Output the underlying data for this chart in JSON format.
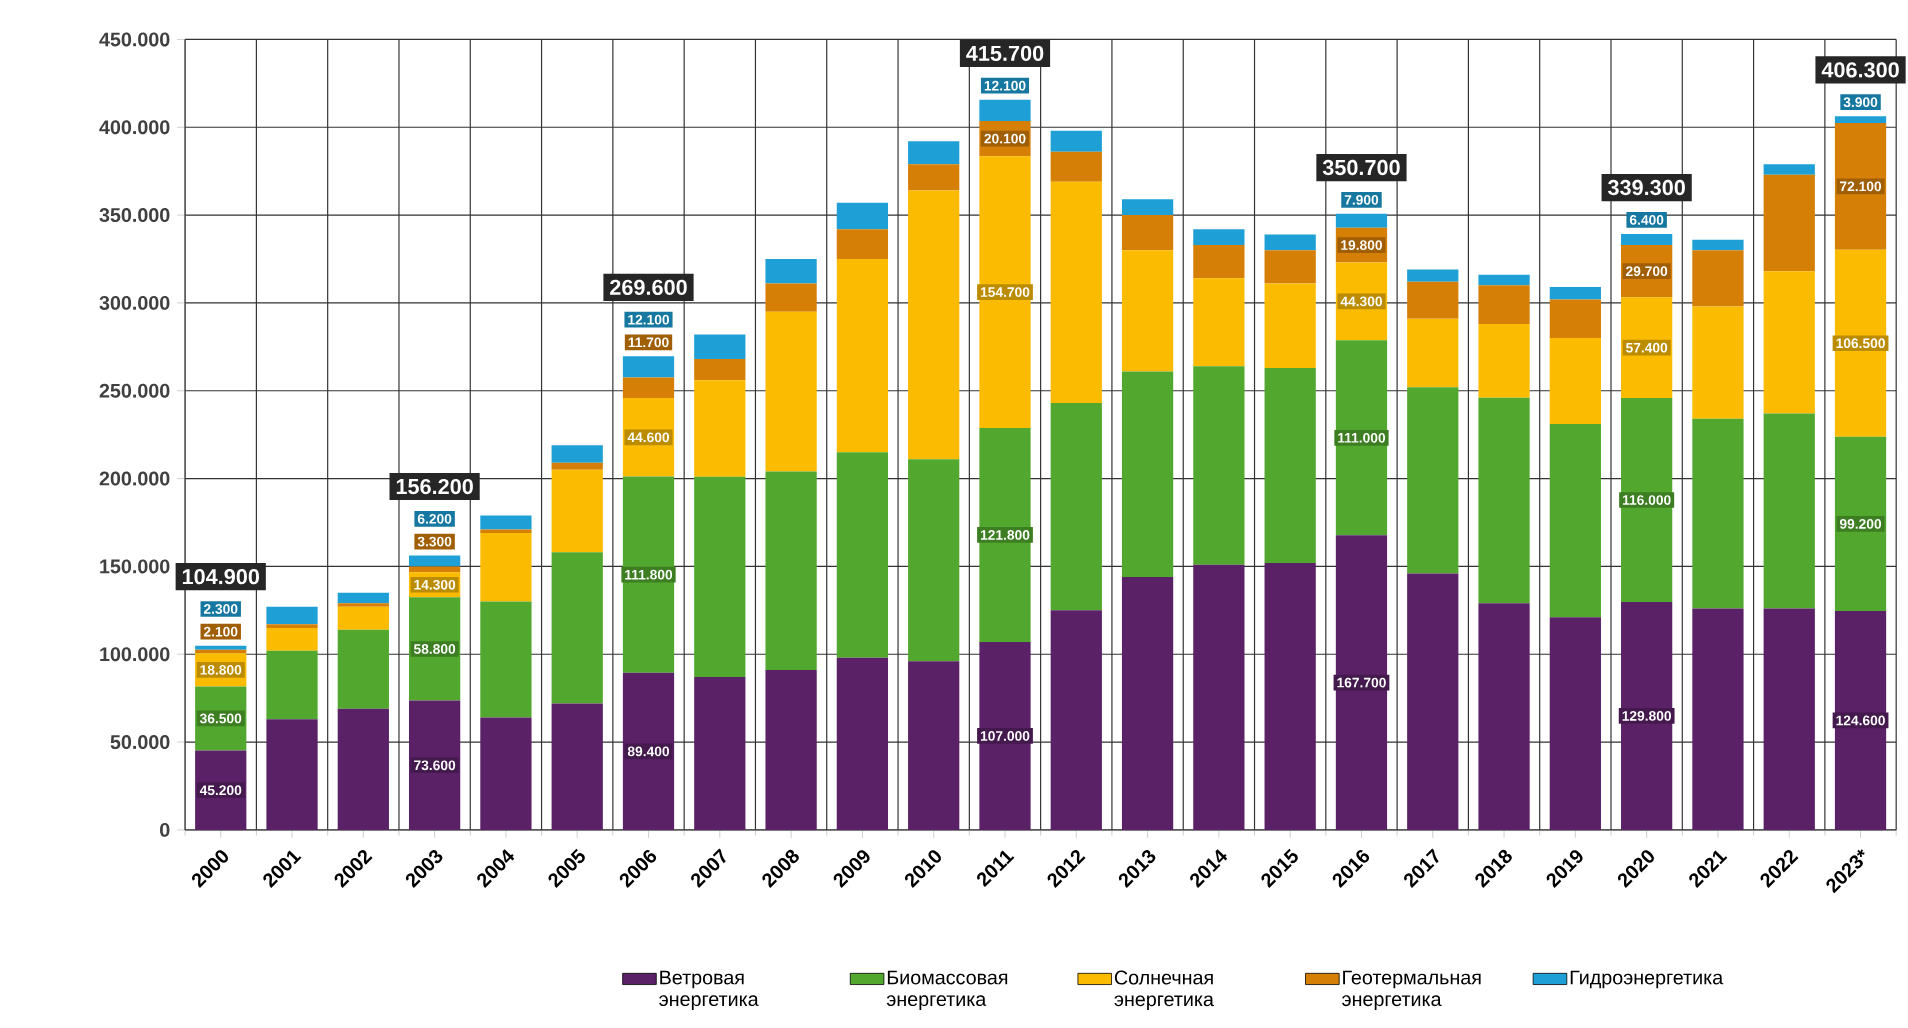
{
  "chart_data": {
    "type": "bar",
    "stacked": true,
    "grid": true,
    "legend": "bottom",
    "categories": [
      "2000",
      "2001",
      "2002",
      "2003",
      "2004",
      "2005",
      "2006",
      "2007",
      "2008",
      "2009",
      "2010",
      "2011",
      "2012",
      "2013",
      "2014",
      "2015",
      "2016",
      "2017",
      "2018",
      "2019",
      "2020",
      "2021",
      "2022",
      "2023*"
    ],
    "ylim": [
      0,
      450000
    ],
    "yticks": [
      0,
      {
        "value": 50000,
        "label": "50.000"
      },
      {
        "value": 100000,
        "label": "100.000"
      },
      {
        "value": 150000,
        "label": "150.000"
      },
      {
        "value": 200000,
        "label": "200.000"
      },
      {
        "value": 250000,
        "label": "250.000"
      },
      {
        "value": 300000,
        "label": "300.000"
      },
      {
        "value": 350000,
        "label": "350.000"
      },
      {
        "value": 400000,
        "label": "400.000"
      },
      {
        "value": 450000,
        "label": "450.000"
      }
    ],
    "series": [
      {
        "name": "Ветровая энергетика",
        "color": "#5b2167",
        "values": [
          45200,
          63000,
          69000,
          73600,
          64000,
          72000,
          89400,
          87000,
          91000,
          98000,
          96000,
          107000,
          125000,
          144000,
          151000,
          152000,
          167700,
          146000,
          129000,
          121000,
          129800,
          126000,
          126000,
          124600
        ],
        "value_labels": [
          "45.200",
          null,
          null,
          "73.600",
          null,
          null,
          "89.400",
          null,
          null,
          null,
          null,
          "107.000",
          null,
          null,
          null,
          null,
          "167.700",
          null,
          null,
          null,
          "129.800",
          null,
          null,
          "124.600"
        ]
      },
      {
        "name": "Биомассовая энергетика",
        "color": "#52a82e",
        "values": [
          36500,
          39000,
          45000,
          58800,
          66000,
          86000,
          111800,
          114000,
          113000,
          117000,
          115000,
          121800,
          118000,
          117000,
          113000,
          111000,
          111000,
          106000,
          117000,
          110000,
          116000,
          108000,
          111000,
          99200
        ],
        "value_labels": [
          "36.500",
          null,
          null,
          "58.800",
          null,
          null,
          "111.800",
          null,
          null,
          null,
          null,
          "121.800",
          null,
          null,
          null,
          null,
          "111.000",
          null,
          null,
          null,
          "116.000",
          null,
          null,
          "99.200"
        ]
      },
      {
        "name": "Солнечная энергетика",
        "color": "#fbbb00",
        "values": [
          18800,
          13000,
          13000,
          14300,
          39000,
          47000,
          44600,
          55000,
          91000,
          110000,
          153000,
          154700,
          126000,
          69000,
          50000,
          48000,
          44300,
          39000,
          42000,
          49000,
          57400,
          64000,
          81000,
          106500
        ],
        "value_labels": [
          "18.800",
          null,
          null,
          "14.300",
          null,
          null,
          "44.600",
          null,
          null,
          null,
          null,
          "154.700",
          null,
          null,
          null,
          null,
          "44.300",
          null,
          null,
          null,
          "57.400",
          null,
          null,
          "106.500"
        ]
      },
      {
        "name": "Геотермальная энергетика",
        "color": "#d57f06",
        "values": [
          2100,
          2000,
          2000,
          3300,
          2000,
          4000,
          11700,
          12000,
          16000,
          17000,
          15000,
          20100,
          17000,
          20000,
          19000,
          19000,
          19800,
          21000,
          22000,
          22000,
          29700,
          32000,
          55000,
          72100
        ],
        "value_labels": [
          "2.100",
          null,
          null,
          "3.300",
          null,
          null,
          "11.700",
          null,
          null,
          null,
          null,
          "20.100",
          null,
          null,
          null,
          null,
          "19.800",
          null,
          null,
          null,
          "29.700",
          null,
          null,
          "72.100"
        ]
      },
      {
        "name": "Гидроэнергетика",
        "color": "#1ea0d6",
        "values": [
          2300,
          10000,
          6000,
          6200,
          8000,
          10000,
          12100,
          14000,
          14000,
          15000,
          13000,
          12100,
          12000,
          9000,
          9000,
          9000,
          7900,
          7000,
          6000,
          7000,
          6400,
          6000,
          6000,
          3900
        ],
        "value_labels": [
          "2.300",
          null,
          null,
          "6.200",
          null,
          null,
          "12.100",
          null,
          null,
          null,
          null,
          "12.100",
          null,
          null,
          null,
          null,
          "7.900",
          null,
          null,
          null,
          "6.400",
          null,
          null,
          "3.900"
        ]
      }
    ],
    "totals": [
      "104.900",
      null,
      null,
      "156.200",
      null,
      null,
      "269.600",
      null,
      null,
      null,
      null,
      "415.700",
      null,
      null,
      null,
      null,
      "350.700",
      null,
      null,
      null,
      "339.300",
      null,
      null,
      "406.300"
    ]
  }
}
